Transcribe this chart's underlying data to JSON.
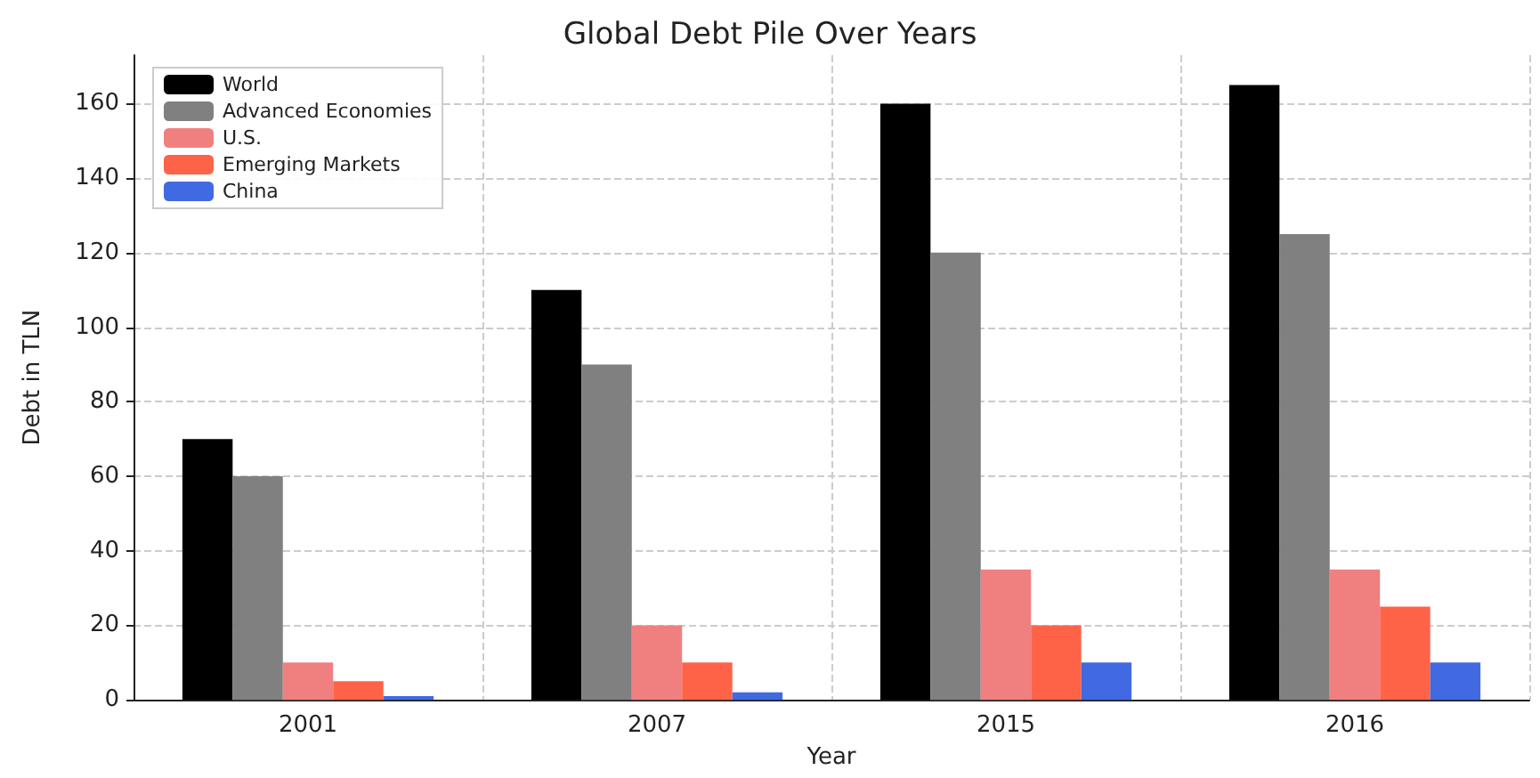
{
  "chart_data": {
    "type": "bar",
    "title": "Global Debt Pile Over Years",
    "xlabel": "Year",
    "ylabel": "Debt in TLN",
    "categories": [
      "2001",
      "2007",
      "2015",
      "2016"
    ],
    "series": [
      {
        "name": "World",
        "color": "#000000",
        "values": [
          70,
          110,
          160,
          165
        ]
      },
      {
        "name": "Advanced Economies",
        "color": "#808080",
        "values": [
          60,
          90,
          120,
          125
        ]
      },
      {
        "name": "U.S.",
        "color": "#f08080",
        "values": [
          10,
          20,
          35,
          35
        ]
      },
      {
        "name": "Emerging Markets",
        "color": "#ff6347",
        "values": [
          5,
          10,
          20,
          25
        ]
      },
      {
        "name": "China",
        "color": "#4169e1",
        "values": [
          1,
          2,
          10,
          10
        ]
      }
    ],
    "ylim": [
      0,
      173
    ],
    "yticks": [
      0,
      20,
      40,
      60,
      80,
      100,
      120,
      140,
      160
    ],
    "grid": true,
    "legend": "top left"
  }
}
